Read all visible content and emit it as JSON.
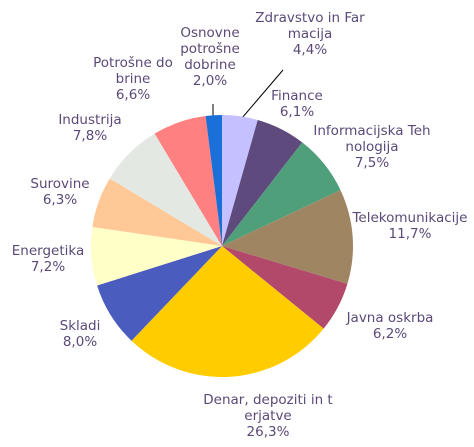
{
  "chart_data": {
    "type": "pie",
    "categories": [
      "Zdravstvo in Farmacija",
      "Finance",
      "Informacijska Tehnologija",
      "Telekomunikacije",
      "Javna oskrba",
      "Denar, depoziti in terjatve",
      "Skladi",
      "Energetika",
      "Surovine",
      "Industrija",
      "Potrošne dobrine",
      "Osnovne potrošne dobrine"
    ],
    "values": [
      4.4,
      6.1,
      7.5,
      11.7,
      6.2,
      26.3,
      8.0,
      7.2,
      6.3,
      7.8,
      6.6,
      2.0
    ],
    "value_labels": [
      "4,4%",
      "6,1%",
      "7,5%",
      "11,7%",
      "6,2%",
      "26,3%",
      "8,0%",
      "7,2%",
      "6,3%",
      "7,8%",
      "6,6%",
      "2,0%"
    ],
    "colors": [
      "#c5c0ff",
      "#5e4a7c",
      "#4fa07a",
      "#a08562",
      "#b3496a",
      "#ffcc00",
      "#4b5cbf",
      "#ffffc8",
      "#ffc896",
      "#e3e8e3",
      "#ff8080",
      "#1a6fd8"
    ]
  }
}
